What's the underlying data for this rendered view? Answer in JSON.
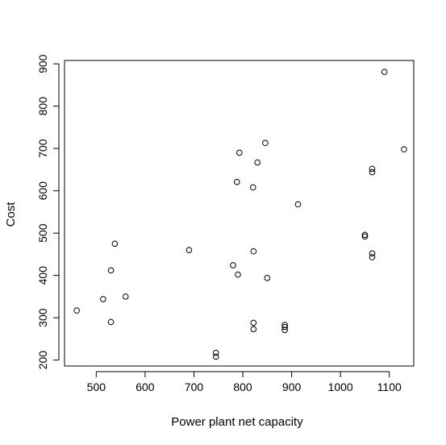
{
  "chart_data": {
    "type": "scatter",
    "title": "",
    "xlabel": "Power plant net capacity",
    "ylabel": "Cost",
    "xlim": [
      435,
      1150
    ],
    "ylim": [
      186,
      908
    ],
    "x_ticks": [
      500,
      600,
      700,
      800,
      900,
      1000,
      1100
    ],
    "y_ticks": [
      200,
      300,
      400,
      500,
      600,
      700,
      800,
      900
    ],
    "grid": false,
    "legend": "none",
    "series": [
      {
        "points": [
          {
            "x": 460,
            "y": 317
          },
          {
            "x": 514,
            "y": 344
          },
          {
            "x": 530,
            "y": 412
          },
          {
            "x": 530,
            "y": 290
          },
          {
            "x": 538,
            "y": 475
          },
          {
            "x": 560,
            "y": 350
          },
          {
            "x": 690,
            "y": 460
          },
          {
            "x": 745,
            "y": 217
          },
          {
            "x": 745,
            "y": 208
          },
          {
            "x": 780,
            "y": 424
          },
          {
            "x": 788,
            "y": 621
          },
          {
            "x": 790,
            "y": 402
          },
          {
            "x": 793,
            "y": 690
          },
          {
            "x": 821,
            "y": 608
          },
          {
            "x": 822,
            "y": 457
          },
          {
            "x": 822,
            "y": 288
          },
          {
            "x": 822,
            "y": 273
          },
          {
            "x": 830,
            "y": 667
          },
          {
            "x": 846,
            "y": 713
          },
          {
            "x": 850,
            "y": 394
          },
          {
            "x": 886,
            "y": 283
          },
          {
            "x": 886,
            "y": 278
          },
          {
            "x": 886,
            "y": 271
          },
          {
            "x": 913,
            "y": 568
          },
          {
            "x": 1050,
            "y": 496
          },
          {
            "x": 1050,
            "y": 492
          },
          {
            "x": 1065,
            "y": 652
          },
          {
            "x": 1065,
            "y": 644
          },
          {
            "x": 1065,
            "y": 452
          },
          {
            "x": 1065,
            "y": 443
          },
          {
            "x": 1090,
            "y": 881
          },
          {
            "x": 1130,
            "y": 698
          }
        ]
      }
    ]
  }
}
